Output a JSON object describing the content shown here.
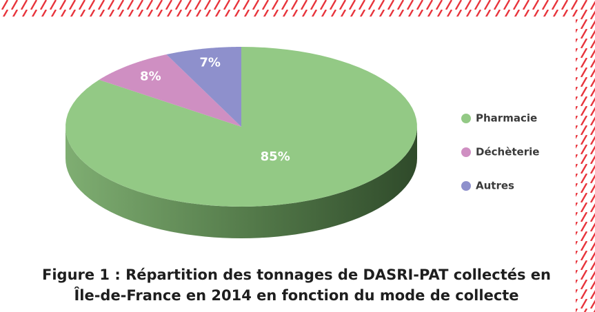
{
  "chart_data": {
    "type": "pie",
    "title": "Figure 1 : Répartition des tonnages de DASRI-PAT collectés en Île-de-France en 2014 en fonction du mode de collecte",
    "categories": [
      "Pharmacie",
      "Déchèterie",
      "Autres"
    ],
    "values": [
      85,
      8,
      7
    ],
    "value_labels": [
      "85%",
      "8%",
      "7%"
    ],
    "colors": [
      "#93c985",
      "#cf8fc2",
      "#8e90cc"
    ],
    "legend": "right"
  }
}
